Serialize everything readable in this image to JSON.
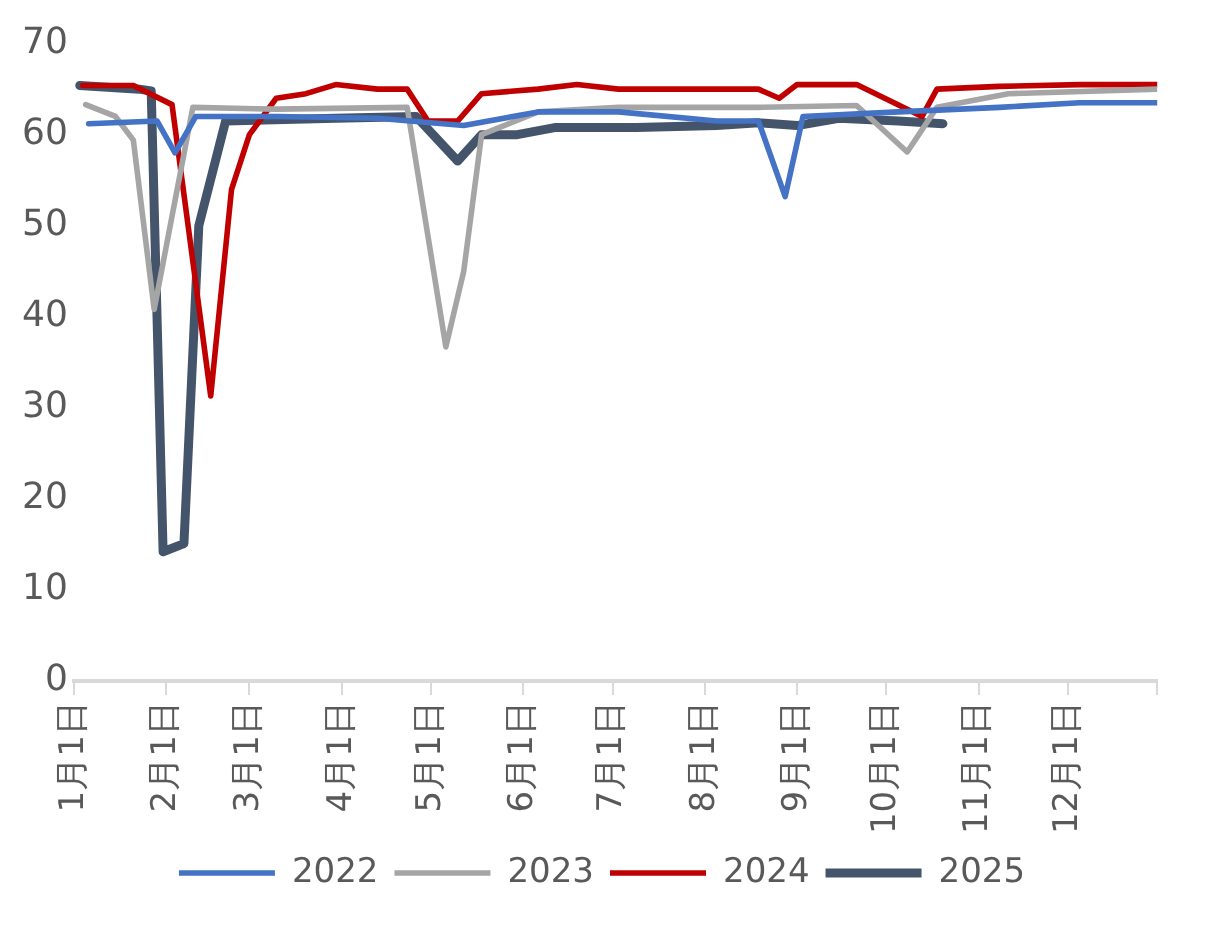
{
  "chart_data": {
    "type": "line",
    "xlim": [
      "--01-01",
      "--12-31"
    ],
    "xticks": [
      {
        "value": "--01-01",
        "label": "1月1日"
      },
      {
        "value": "--02-01",
        "label": "2月1日"
      },
      {
        "value": "--03-01",
        "label": "3月1日"
      },
      {
        "value": "--04-01",
        "label": "4月1日"
      },
      {
        "value": "--05-01",
        "label": "5月1日"
      },
      {
        "value": "--06-01",
        "label": "6月1日"
      },
      {
        "value": "--07-01",
        "label": "7月1日"
      },
      {
        "value": "--08-01",
        "label": "8月1日"
      },
      {
        "value": "--09-01",
        "label": "9月1日"
      },
      {
        "value": "--10-01",
        "label": "10月1日"
      },
      {
        "value": "--11-01",
        "label": "11月1日"
      },
      {
        "value": "--12-01",
        "label": "12月1日"
      },
      {
        "value": "--12-31",
        "label": null
      }
    ],
    "ylim": [
      0,
      70
    ],
    "yticks": [
      0,
      10,
      20,
      30,
      40,
      50,
      60,
      70
    ],
    "grid": false,
    "legend": "bottom",
    "marker": "none",
    "line_style": "solid",
    "series": [
      {
        "name": "2022",
        "color": "#4472c4",
        "x": [
          "--01-06",
          "--01-29",
          "--02-04",
          "--02-11",
          "--03-10",
          "--04-13",
          "--05-12",
          "--06-06",
          "--07-03",
          "--08-05",
          "--08-19",
          "--08-28",
          "--09-03",
          "--10-05",
          "--11-08",
          "--12-05",
          "--12-31"
        ],
        "values": [
          61.2,
          61.5,
          58,
          62,
          62,
          61.8,
          61,
          62.5,
          62.5,
          61.5,
          61.5,
          53.2,
          62,
          62.5,
          63,
          63.5,
          63.5
        ]
      },
      {
        "name": "2023",
        "color": "#a5a5a5",
        "x": [
          "--01-05",
          "--01-15",
          "--01-21",
          "--01-28",
          "--02-10",
          "--03-10",
          "--04-23",
          "--05-06",
          "--05-12",
          "--05-18",
          "--06-06",
          "--07-03",
          "--08-19",
          "--09-21",
          "--10-08",
          "--10-18",
          "--11-11",
          "--12-31"
        ],
        "values": [
          63.3,
          62,
          59.4,
          40.8,
          63,
          62.8,
          63,
          36.7,
          45,
          60,
          62.5,
          63,
          63,
          63.2,
          58.1,
          63,
          64.5,
          65
        ]
      },
      {
        "name": "2024",
        "color": "#c00000",
        "x": [
          "--01-04",
          "--01-21",
          "--02-03",
          "--02-16",
          "--02-23",
          "--03-01",
          "--03-10",
          "--03-20",
          "--03-30",
          "--04-13",
          "--04-23",
          "--04-30",
          "--05-10",
          "--05-18",
          "--06-06",
          "--06-19",
          "--07-03",
          "--08-19",
          "--08-26",
          "--09-01",
          "--09-21",
          "--10-13",
          "--10-18",
          "--11-08",
          "--12-05",
          "--12-31"
        ],
        "values": [
          65.4,
          65.4,
          63.3,
          31.3,
          54,
          60,
          64,
          64.5,
          65.5,
          65,
          65,
          61.5,
          61.5,
          64.5,
          65,
          65.5,
          65,
          65,
          64,
          65.5,
          65.5,
          62,
          65,
          65.3,
          65.5,
          65.5
        ]
      },
      {
        "name": "2025",
        "color": "#44546a",
        "x": [
          "--01-03",
          "--01-23",
          "--01-27",
          "--01-31",
          "--02-07",
          "--02-12",
          "--02-21",
          "--03-30",
          "--04-26",
          "--05-10",
          "--05-18",
          "--05-30",
          "--06-12",
          "--07-09",
          "--08-05",
          "--08-19",
          "--09-01",
          "--09-15",
          "--10-05",
          "--10-20"
        ],
        "values": [
          65.4,
          65,
          64.8,
          14.2,
          15.1,
          50,
          61.5,
          61.8,
          62,
          57.1,
          60,
          60,
          60.8,
          60.8,
          61,
          61.3,
          61,
          61.8,
          61.5,
          61.2
        ]
      }
    ]
  }
}
